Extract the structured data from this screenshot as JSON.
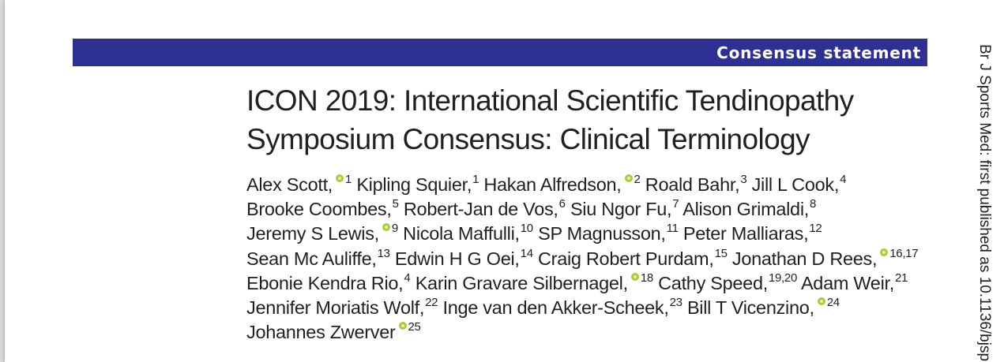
{
  "header": {
    "article_type": "Consensus statement"
  },
  "title": {
    "line1": "ICON 2019: International Scientific Tendinopathy",
    "line2": "Symposium Consensus: Clinical Terminology"
  },
  "side_running_text": "Br J Sports Med: first published as 10.1136/bjsp",
  "colors": {
    "banner": "#2e3192",
    "orcid": "#a6ce39",
    "text": "#231f20"
  },
  "icons": {
    "orcid": "orcid-icon"
  },
  "author_rows": [
    [
      {
        "name": "Alex Scott,",
        "orcid": true,
        "aff": "1"
      },
      {
        "name": "Kipling Squier,",
        "orcid": false,
        "aff": "1"
      },
      {
        "name": "Hakan Alfredson,",
        "orcid": true,
        "aff": "2"
      },
      {
        "name": "Roald Bahr,",
        "orcid": false,
        "aff": "3"
      },
      {
        "name": "Jill L Cook,",
        "orcid": false,
        "aff": "4"
      }
    ],
    [
      {
        "name": "Brooke Coombes,",
        "orcid": false,
        "aff": "5"
      },
      {
        "name": "Robert-Jan de Vos,",
        "orcid": false,
        "aff": "6"
      },
      {
        "name": "Siu Ngor Fu,",
        "orcid": false,
        "aff": "7"
      },
      {
        "name": "Alison Grimaldi,",
        "orcid": false,
        "aff": "8"
      }
    ],
    [
      {
        "name": "Jeremy S Lewis,",
        "orcid": true,
        "aff": "9"
      },
      {
        "name": "Nicola Maffulli,",
        "orcid": false,
        "aff": "10"
      },
      {
        "name": "SP Magnusson,",
        "orcid": false,
        "aff": "11"
      },
      {
        "name": "Peter Malliaras,",
        "orcid": false,
        "aff": "12"
      }
    ],
    [
      {
        "name": "Sean Mc Auliffe,",
        "orcid": false,
        "aff": "13"
      },
      {
        "name": "Edwin H G Oei,",
        "orcid": false,
        "aff": "14"
      },
      {
        "name": "Craig Robert Purdam,",
        "orcid": false,
        "aff": "15"
      },
      {
        "name": "Jonathan D Rees,",
        "orcid": true,
        "aff": "16,17"
      }
    ],
    [
      {
        "name": "Ebonie Kendra Rio,",
        "orcid": false,
        "aff": "4"
      },
      {
        "name": "Karin Gravare Silbernagel,",
        "orcid": true,
        "aff": "18"
      },
      {
        "name": "Cathy Speed,",
        "orcid": false,
        "aff": "19,20"
      },
      {
        "name": "Adam Weir,",
        "orcid": false,
        "aff": "21"
      }
    ],
    [
      {
        "name": "Jennifer Moriatis Wolf,",
        "orcid": false,
        "aff": "22"
      },
      {
        "name": "Inge van den Akker-Scheek,",
        "orcid": false,
        "aff": "23"
      },
      {
        "name": "Bill T Vicenzino,",
        "orcid": true,
        "aff": "24"
      }
    ],
    [
      {
        "name": "Johannes Zwerver",
        "orcid": true,
        "aff": "25"
      }
    ]
  ]
}
